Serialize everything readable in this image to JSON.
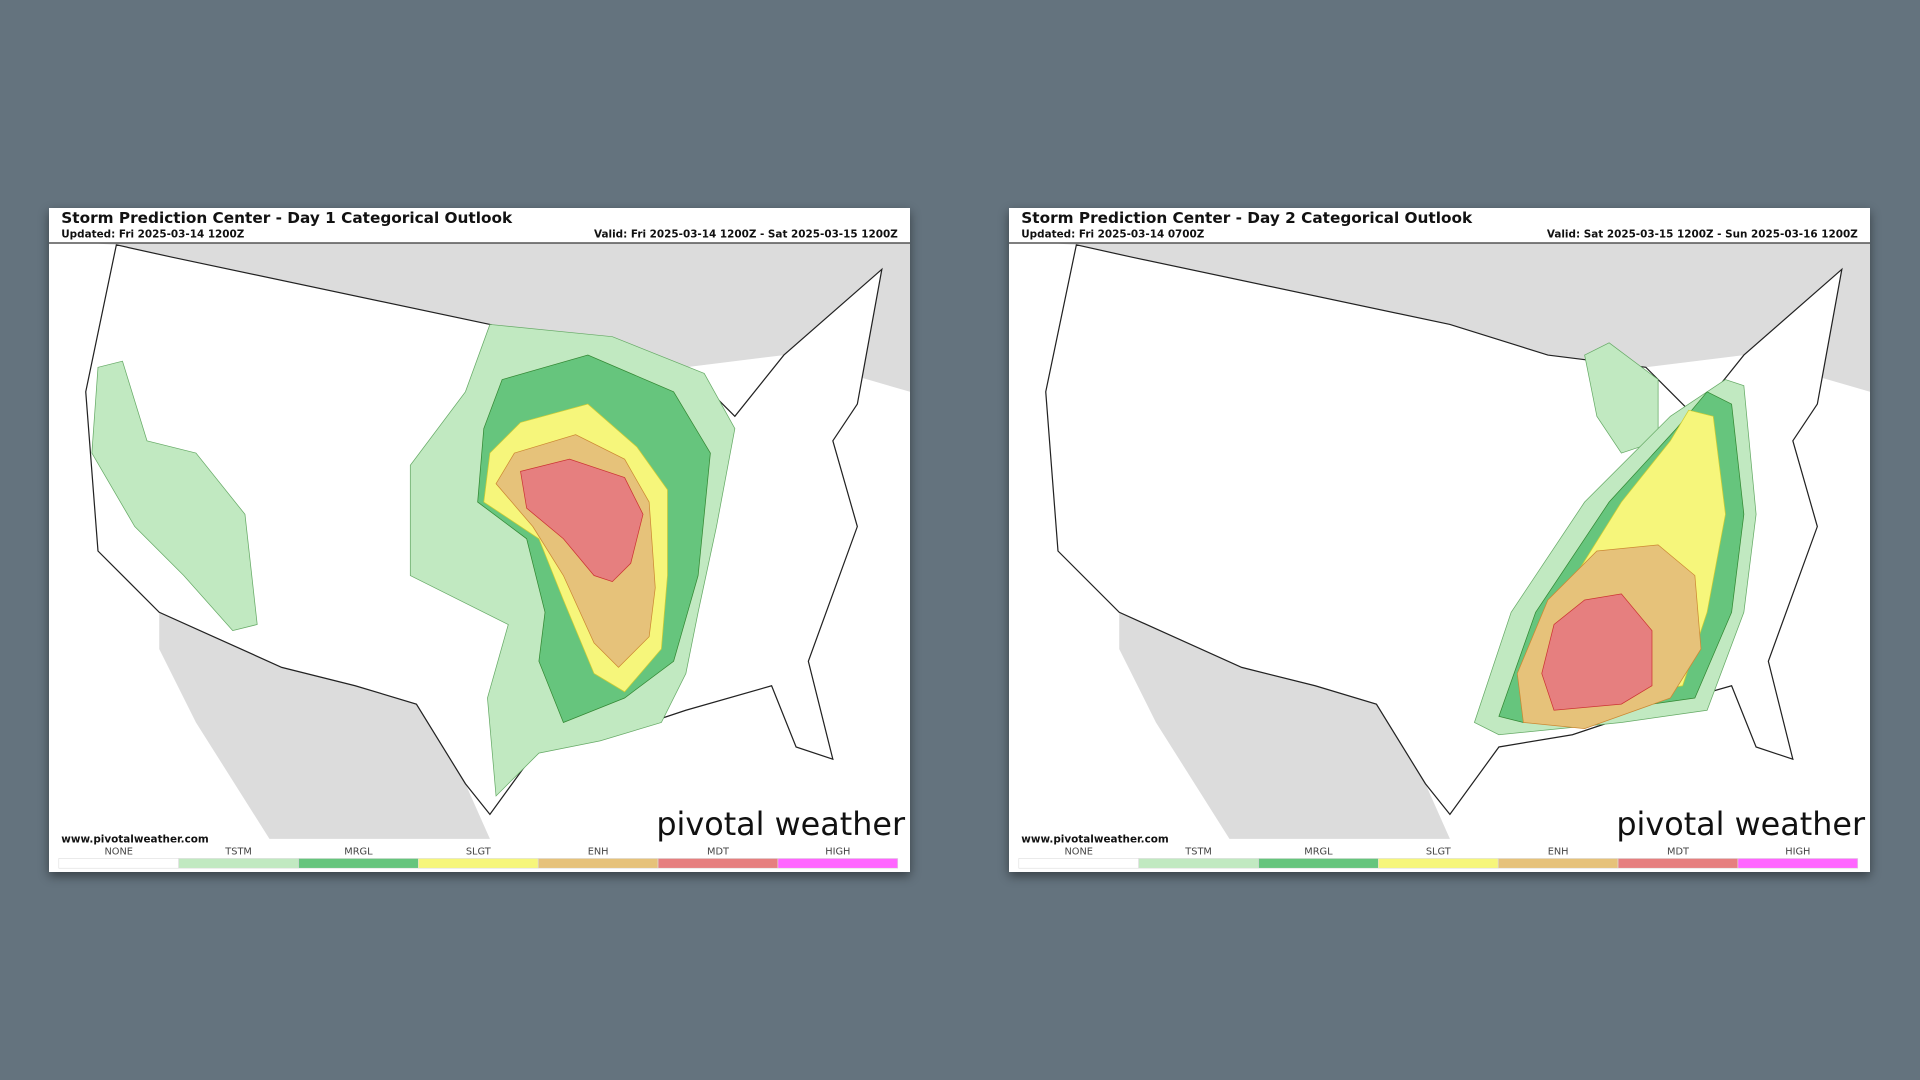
{
  "panels": [
    {
      "title": "Storm Prediction Center - Day 1 Categorical Outlook",
      "updated": "Updated: Fri 2025-03-14 1200Z",
      "valid": "Valid: Fri 2025-03-14 1200Z - Sat 2025-03-15 1200Z",
      "website": "www.pivotalweather.com",
      "logo": "pivotal weather",
      "legend": [
        "NONE",
        "TSTM",
        "MRGL",
        "SLGT",
        "ENH",
        "MDT",
        "HIGH"
      ]
    },
    {
      "title": "Storm Prediction Center - Day 2 Categorical Outlook",
      "updated": "Updated: Fri 2025-03-14 0700Z",
      "valid": "Valid: Sat 2025-03-15 1200Z - Sun 2025-03-16 1200Z",
      "website": "www.pivotalweather.com",
      "logo": "pivotal weather",
      "legend": [
        "NONE",
        "TSTM",
        "MRGL",
        "SLGT",
        "ENH",
        "MDT",
        "HIGH"
      ]
    }
  ]
}
